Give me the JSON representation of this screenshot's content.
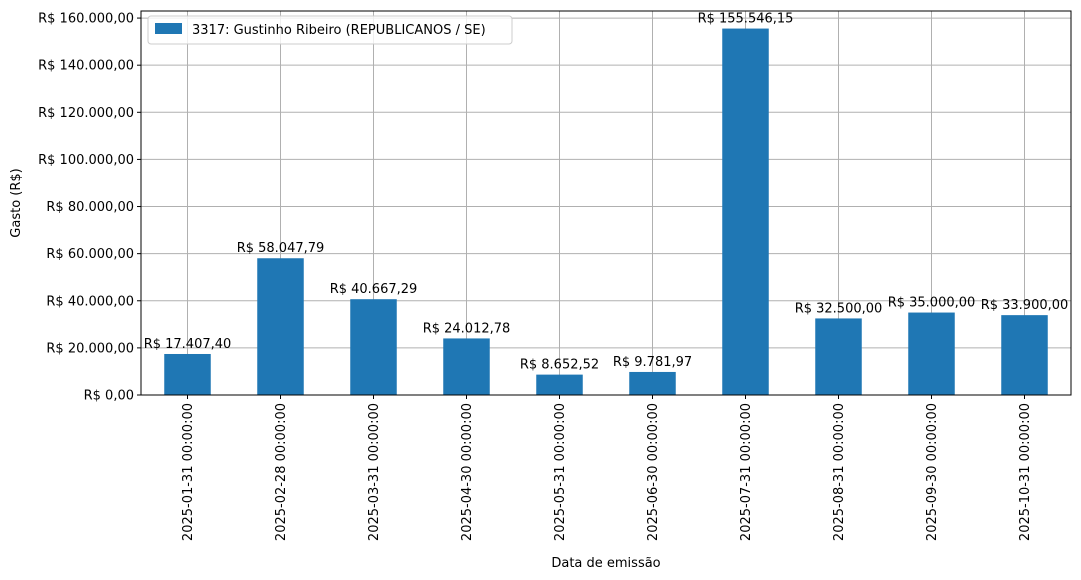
{
  "chart_data": {
    "type": "bar",
    "xlabel": "Data de emissão",
    "ylabel": "Gasto (R$)",
    "ylim": [
      0,
      163000
    ],
    "yticks": [
      0,
      20000,
      40000,
      60000,
      80000,
      100000,
      120000,
      140000,
      160000
    ],
    "ytick_labels": [
      "R$ 0,00",
      "R$ 20.000,00",
      "R$ 40.000,00",
      "R$ 60.000,00",
      "R$ 80.000,00",
      "R$ 100.000,00",
      "R$ 120.000,00",
      "R$ 140.000,00",
      "R$ 160.000,00"
    ],
    "categories": [
      "2025-01-31 00:00:00",
      "2025-02-28 00:00:00",
      "2025-03-31 00:00:00",
      "2025-04-30 00:00:00",
      "2025-05-31 00:00:00",
      "2025-06-30 00:00:00",
      "2025-07-31 00:00:00",
      "2025-08-31 00:00:00",
      "2025-09-30 00:00:00",
      "2025-10-31 00:00:00"
    ],
    "series": [
      {
        "name": "3317: Gustinho Ribeiro (REPUBLICANOS / SE)",
        "color": "#1f77b4",
        "values": [
          17407.4,
          58047.79,
          40667.29,
          24012.78,
          8652.52,
          9781.97,
          155546.15,
          32500.0,
          35000.0,
          33900.0
        ],
        "labels": [
          "R$ 17.407,40",
          "R$ 58.047,79",
          "R$ 40.667,29",
          "R$ 24.012,78",
          "R$ 8.652,52",
          "R$ 9.781,97",
          "R$ 155.546,15",
          "R$ 32.500,00",
          "R$ 35.000,00",
          "R$ 33.900,00"
        ]
      }
    ],
    "grid": true,
    "legend_position": "top-left"
  }
}
